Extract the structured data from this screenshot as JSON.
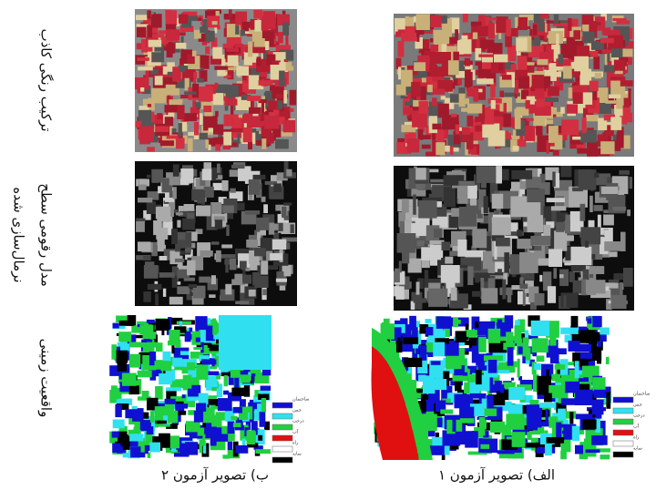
{
  "rows": [
    {
      "label": "ترکیب رنگی کاذب"
    },
    {
      "label": [
        "مدل رقومی سطح",
        "نرمال‌سازی شده"
      ]
    },
    {
      "label": "واقعیت زمینی"
    }
  ],
  "captions": [
    "ب) تصویر آزمون ۲",
    "الف) تصویر آزمون ۱"
  ],
  "legend": [
    "ساختمان",
    "چمن",
    "درخت",
    "آب",
    "راه",
    "سایه"
  ]
}
